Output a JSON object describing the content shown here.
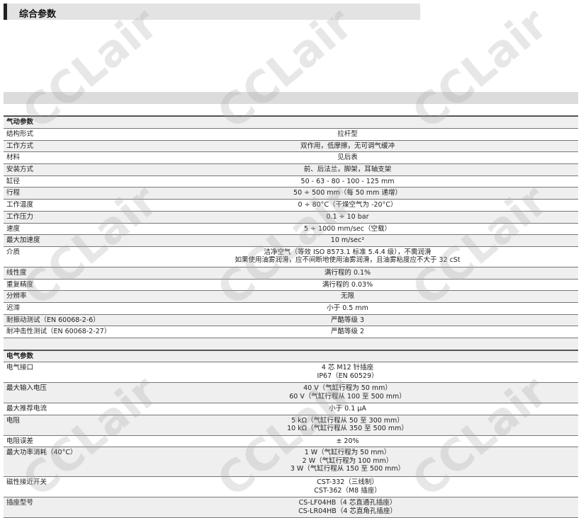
{
  "title": "综合参数",
  "watermark": "CCLair",
  "sections": [
    {
      "header": "气动参数",
      "rows": [
        {
          "label": "结构形式",
          "value": [
            "拉杆型"
          ]
        },
        {
          "label": "工作方式",
          "value": [
            "双作用，低摩擦，无可调气缓冲"
          ]
        },
        {
          "label": "材料",
          "value": [
            "见后表"
          ]
        },
        {
          "label": "安装方式",
          "value": [
            "前、后法兰，脚架，耳轴支架"
          ]
        },
        {
          "label": "缸径",
          "value": [
            "50 - 63 - 80 - 100 - 125 mm"
          ]
        },
        {
          "label": "行程",
          "value": [
            "50 ÷ 500 mm（每 50 mm 递增）"
          ]
        },
        {
          "label": "工作温度",
          "value": [
            "0 ÷ 80°C（干燥空气为 -20°C）"
          ]
        },
        {
          "label": "工作压力",
          "value": [
            "0.1 ÷ 10 bar"
          ]
        },
        {
          "label": "速度",
          "value": [
            "5 ÷ 1000 mm/sec（空载）"
          ]
        },
        {
          "label": "最大加速度",
          "value": [
            "10 m/sec²"
          ]
        },
        {
          "label": "介质",
          "value": [
            "洁净空气（等效 ISO 8573.1 标准 5.4.4 级），不需润滑",
            "如果使用油雾润滑，应不间断地使用油雾润滑，且油雾粘度应不大于 32 cSt"
          ]
        },
        {
          "label": "线性度",
          "value": [
            "满行程的 0.1%"
          ]
        },
        {
          "label": "重复精度",
          "value": [
            "满行程的 0.03%"
          ]
        },
        {
          "label": "分辨率",
          "value": [
            "无限"
          ]
        },
        {
          "label": "迟滞",
          "value": [
            "小于 0.5 mm"
          ]
        },
        {
          "label": "耐振动测试（EN 60068-2-6）",
          "value": [
            "严酷等级 3"
          ]
        },
        {
          "label": "耐冲击性测试（EN 60068-2-27）",
          "value": [
            "严酷等级 2"
          ]
        }
      ]
    },
    {
      "header": "电气参数",
      "rows": [
        {
          "label": "电气接口",
          "value": [
            "4 芯 M12 针插座",
            "IP67（EN 60529）"
          ]
        },
        {
          "label": "最大输入电压",
          "value": [
            "40 V（气缸行程为 50 mm）",
            "60 V（气缸行程从 100 至 500 mm）"
          ]
        },
        {
          "label": "最大推荐电流",
          "value": [
            "小于 0.1 µA"
          ]
        },
        {
          "label": "电阻",
          "value": [
            "5 kΩ（气缸行程从 50 至 300 mm）",
            "10 kΩ（气缸行程从 350 至 500 mm）"
          ]
        },
        {
          "label": "电阻误差",
          "value": [
            "± 20%"
          ]
        },
        {
          "label": "最大功率消耗（40°C）",
          "value": [
            "1 W（气缸行程为 50 mm）",
            "2 W（气缸行程为 100 mm）",
            "3 W（气缸行程从 150 至 500 mm）"
          ]
        },
        {
          "label": "磁性接近开关",
          "value": [
            "CST-332（三线制）",
            "CST-362（M8 插座）"
          ]
        },
        {
          "label": "插座型号",
          "value": [
            "CS-LF04HB（4 芯直通孔插座）",
            "CS-LR04HB（4 芯直角孔插座）"
          ]
        }
      ]
    }
  ]
}
